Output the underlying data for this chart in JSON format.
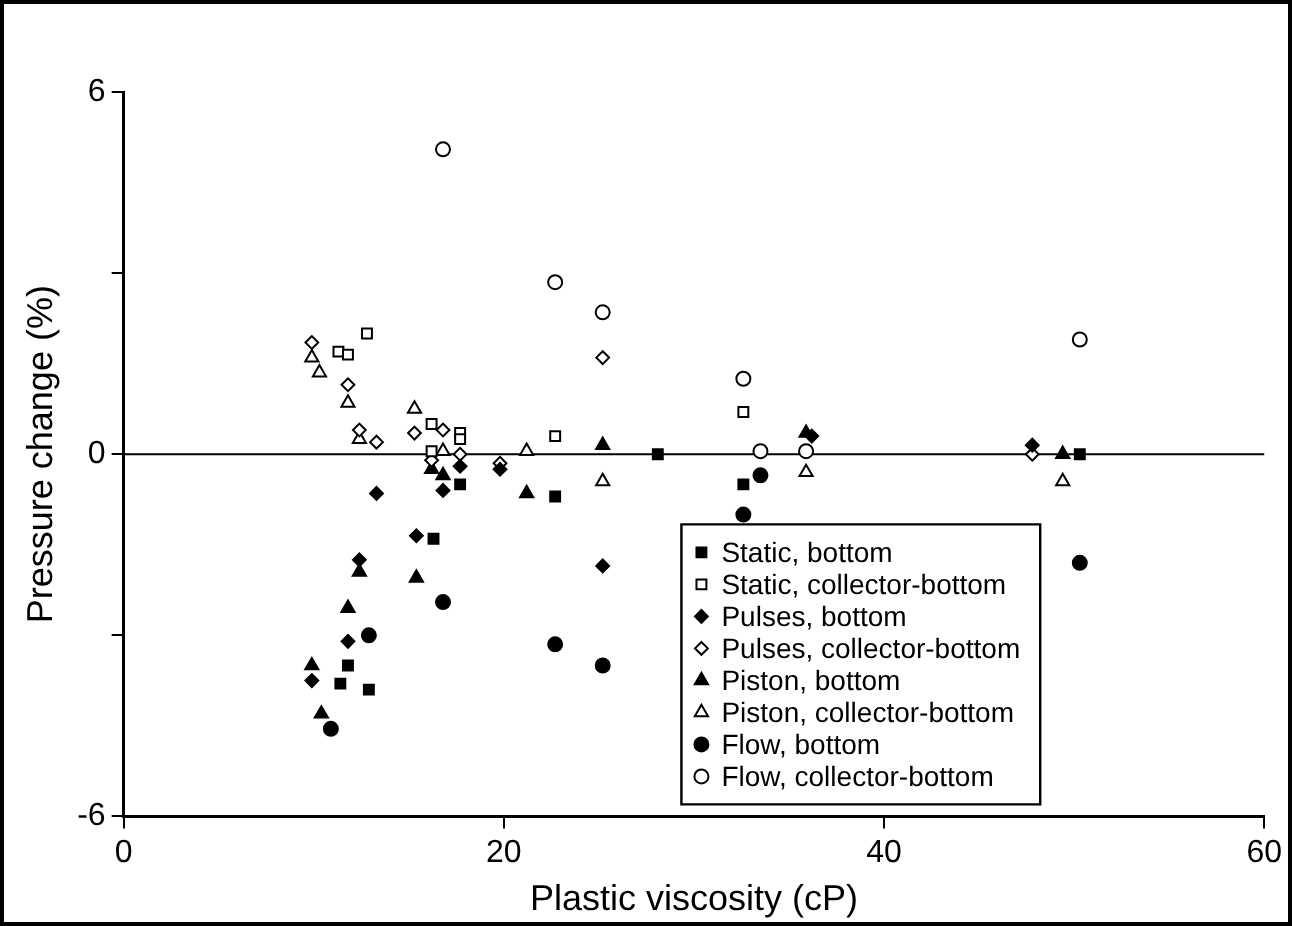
{
  "chart_data": {
    "type": "scatter",
    "xlabel": "Plastic viscosity (cP)",
    "ylabel": "Pressure change (%)",
    "xlim": [
      0,
      60
    ],
    "xticks": [
      0,
      20,
      40,
      60
    ],
    "ylim": [
      -6,
      6
    ],
    "yticks": [
      -6,
      {
        "value": -3,
        "label": null
      },
      0,
      {
        "value": 3,
        "label": null
      },
      6
    ],
    "grid": false,
    "legend": "bottom right",
    "ref_lines": [
      {
        "axis": "y",
        "value": 0,
        "color": "#000000"
      }
    ],
    "series": [
      {
        "name": "Static, bottom",
        "marker": "square",
        "color": "#000000",
        "x": [
          11.8,
          11.4,
          12.9,
          16.3,
          17.7,
          22.7,
          28.1,
          32.6,
          50.3
        ],
        "values": [
          -3.5,
          -3.8,
          -3.9,
          -1.4,
          -0.5,
          -0.7,
          0,
          -0.5,
          0
        ]
      },
      {
        "name": "Static, collector-bottom",
        "marker": "square",
        "color": "#ffffff",
        "x": [
          11.3,
          11.8,
          12.8,
          16.2,
          17.7,
          17.7,
          16.2,
          22.7,
          32.6
        ],
        "values": [
          1.7,
          1.65,
          2,
          0.5,
          0.35,
          0.25,
          0.05,
          0.3,
          0.7
        ]
      },
      {
        "name": "Pulses, bottom",
        "marker": "diamond",
        "color": "#000000",
        "x": [
          13.3,
          15.4,
          12.4,
          11.8,
          9.9,
          16.8,
          17.7,
          19.8,
          25.2,
          36.2,
          47.8
        ],
        "values": [
          -0.65,
          -1.35,
          -1.75,
          -3.1,
          -3.75,
          -0.6,
          -0.2,
          -0.25,
          -1.85,
          0.3,
          0.15
        ]
      },
      {
        "name": "Pulses, collector-bottom",
        "marker": "diamond",
        "color": "#ffffff",
        "x": [
          9.9,
          11.8,
          12.4,
          13.3,
          15.3,
          16.8,
          16.2,
          17.7,
          19.8,
          25.2,
          47.8
        ],
        "values": [
          1.85,
          1.15,
          0.4,
          0.2,
          0.35,
          0.4,
          -0.1,
          0,
          -0.15,
          1.6,
          0
        ]
      },
      {
        "name": "Piston, bottom",
        "marker": "triangle",
        "color": "#000000",
        "x": [
          12.4,
          15.4,
          11.8,
          9.9,
          10.4,
          16.2,
          16.8,
          21.2,
          25.2,
          35.9,
          49.4
        ],
        "values": [
          -1.95,
          -2.05,
          -2.55,
          -3.5,
          -4.3,
          -0.25,
          -0.35,
          -0.65,
          0.15,
          0.35,
          0
        ]
      },
      {
        "name": "Piston, collector-bottom",
        "marker": "triangle",
        "color": "#ffffff",
        "x": [
          9.9,
          10.3,
          11.8,
          12.4,
          15.3,
          16.8,
          21.2,
          25.2,
          35.9,
          49.4
        ],
        "values": [
          1.6,
          1.35,
          0.85,
          0.25,
          0.75,
          0.05,
          0.05,
          -0.45,
          -0.3,
          -0.45
        ]
      },
      {
        "name": "Flow, bottom",
        "marker": "circle",
        "color": "#000000",
        "x": [
          12.9,
          10.9,
          16.8,
          22.7,
          25.2,
          32.6,
          33.5,
          50.3
        ],
        "values": [
          -3,
          -4.55,
          -2.45,
          -3.15,
          -3.5,
          -1,
          -0.35,
          -1.8
        ]
      },
      {
        "name": "Flow, collector-bottom",
        "marker": "circle",
        "color": "#ffffff",
        "x": [
          16.8,
          22.7,
          25.2,
          32.6,
          33.5,
          35.9,
          50.3
        ],
        "values": [
          5.05,
          2.85,
          2.35,
          1.25,
          0.05,
          0.05,
          1.9
        ]
      }
    ]
  }
}
